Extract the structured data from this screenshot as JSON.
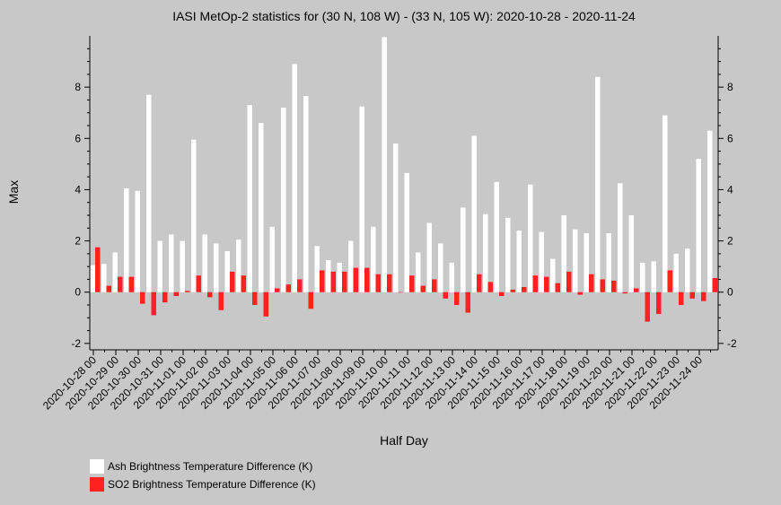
{
  "chart_data": {
    "type": "bar",
    "title": "IASI MetOp-2 statistics for (30 N, 108 W) - (33 N, 105 W): 2020-10-28 - 2020-11-24",
    "xlabel": "Half Day",
    "ylabel": "Max",
    "ylim": [
      -2.25,
      10.0
    ],
    "yticks": [
      -2,
      0,
      2,
      4,
      6,
      8
    ],
    "xtick_labels": [
      "2020-10-28 00",
      "2020-10-29 00",
      "2020-10-30 00",
      "2020-10-31 00",
      "2020-11-01 00",
      "2020-11-02 00",
      "2020-11-03 00",
      "2020-11-04 00",
      "2020-11-05 00",
      "2020-11-06 00",
      "2020-11-07 00",
      "2020-11-08 00",
      "2020-11-09 00",
      "2020-11-10 00",
      "2020-11-11 00",
      "2020-11-12 00",
      "2020-11-13 00",
      "2020-11-14 00",
      "2020-11-15 00",
      "2020-11-16 00",
      "2020-11-17 00",
      "2020-11-18 00",
      "2020-11-19 00",
      "2020-11-20 00",
      "2020-11-21 00",
      "2020-11-22 00",
      "2020-11-23 00",
      "2020-11-24 00"
    ],
    "series": [
      {
        "name": "Ash Brightness Temperature Difference (K)",
        "color": "#ffffff",
        "values": [
          1.05,
          1.1,
          1.55,
          4.05,
          3.95,
          7.7,
          2.0,
          2.25,
          2.0,
          5.95,
          2.25,
          1.9,
          1.6,
          2.05,
          7.3,
          6.6,
          2.55,
          7.2,
          8.9,
          7.65,
          1.8,
          1.25,
          1.15,
          2.0,
          7.25,
          2.55,
          9.95,
          5.8,
          4.65,
          1.55,
          2.7,
          1.9,
          1.15,
          3.3,
          6.1,
          3.05,
          4.3,
          2.9,
          2.4,
          4.2,
          2.35,
          1.3,
          3.0,
          2.45,
          2.3,
          8.4,
          2.3,
          4.25,
          3.0,
          1.15,
          1.2,
          6.9,
          1.5,
          1.7,
          5.2,
          6.3
        ]
      },
      {
        "name": "SO2 Brightness Temperature Difference (K)",
        "color": "#ff2020",
        "values": [
          1.75,
          0.25,
          0.6,
          0.6,
          -0.45,
          -0.9,
          -0.4,
          -0.15,
          0.05,
          0.65,
          -0.2,
          -0.7,
          0.8,
          0.65,
          -0.5,
          -0.95,
          0.15,
          0.3,
          0.5,
          -0.65,
          0.85,
          0.8,
          0.8,
          0.95,
          0.95,
          0.7,
          0.7,
          0.0,
          0.65,
          0.25,
          0.5,
          -0.25,
          -0.5,
          -0.8,
          0.7,
          0.4,
          -0.15,
          0.1,
          0.2,
          0.65,
          0.6,
          0.35,
          0.8,
          -0.1,
          0.7,
          0.5,
          0.45,
          -0.05,
          0.15,
          -1.15,
          -0.85,
          0.85,
          -0.5,
          -0.25,
          -0.35,
          0.55
        ]
      }
    ],
    "grid": false,
    "legend_position": "bottom-left"
  }
}
